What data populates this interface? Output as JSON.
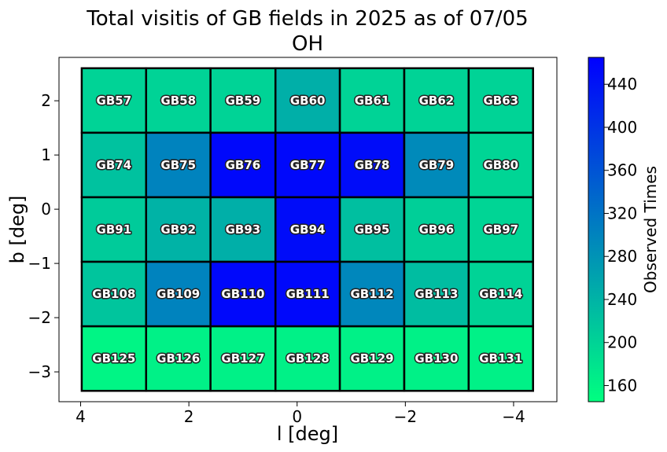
{
  "chart_data": {
    "type": "heatmap",
    "title": "Total visitis of GB fields in 2025 as of 07/05",
    "subtitle": "OH",
    "xlabel": "l [deg]",
    "ylabel": "b [deg]",
    "xlim": [
      4.4,
      -4.8
    ],
    "ylim": [
      -3.55,
      2.8
    ],
    "x_inverted": true,
    "x_ticks": [
      4,
      2,
      0,
      -2,
      -4
    ],
    "x_tick_labels": [
      "4",
      "2",
      "0",
      "−2",
      "−4"
    ],
    "y_ticks": [
      -3,
      -2,
      -1,
      0,
      1,
      2
    ],
    "y_tick_labels": [
      "−3",
      "−2",
      "−1",
      "0",
      "1",
      "2"
    ],
    "grid": false,
    "colorbar": {
      "label": "Observed Times",
      "vmin": 145,
      "vmax": 465,
      "color_low": "#00ff80",
      "color_high": "#0000ff",
      "ticks": [
        160,
        200,
        240,
        280,
        320,
        360,
        400,
        440
      ],
      "tick_labels": [
        "160",
        "200",
        "240",
        "280",
        "320",
        "360",
        "400",
        "440"
      ]
    },
    "column_l_edges": [
      3.98,
      2.79,
      1.6,
      0.4,
      -0.79,
      -1.98,
      -3.17,
      -4.36
    ],
    "row_b_edges": [
      2.6,
      1.41,
      0.22,
      -0.97,
      -2.16,
      -3.35
    ],
    "cells": [
      {
        "label": "GB57",
        "value": 200
      },
      {
        "label": "GB58",
        "value": 200
      },
      {
        "label": "GB59",
        "value": 200
      },
      {
        "label": "GB60",
        "value": 245
      },
      {
        "label": "GB61",
        "value": 200
      },
      {
        "label": "GB62",
        "value": 200
      },
      {
        "label": "GB63",
        "value": 200
      },
      {
        "label": "GB74",
        "value": 222
      },
      {
        "label": "GB75",
        "value": 300
      },
      {
        "label": "GB76",
        "value": 455
      },
      {
        "label": "GB77",
        "value": 455
      },
      {
        "label": "GB78",
        "value": 450
      },
      {
        "label": "GB79",
        "value": 292
      },
      {
        "label": "GB80",
        "value": 198
      },
      {
        "label": "GB91",
        "value": 210
      },
      {
        "label": "GB92",
        "value": 240
      },
      {
        "label": "GB93",
        "value": 245
      },
      {
        "label": "GB94",
        "value": 450
      },
      {
        "label": "GB95",
        "value": 225
      },
      {
        "label": "GB96",
        "value": 205
      },
      {
        "label": "GB97",
        "value": 198
      },
      {
        "label": "GB108",
        "value": 218
      },
      {
        "label": "GB109",
        "value": 300
      },
      {
        "label": "GB110",
        "value": 455
      },
      {
        "label": "GB111",
        "value": 455
      },
      {
        "label": "GB112",
        "value": 295
      },
      {
        "label": "GB113",
        "value": 228
      },
      {
        "label": "GB114",
        "value": 200
      },
      {
        "label": "GB125",
        "value": 158
      },
      {
        "label": "GB126",
        "value": 162
      },
      {
        "label": "GB127",
        "value": 162
      },
      {
        "label": "GB128",
        "value": 162
      },
      {
        "label": "GB129",
        "value": 162
      },
      {
        "label": "GB130",
        "value": 162
      },
      {
        "label": "GB131",
        "value": 162
      }
    ]
  }
}
